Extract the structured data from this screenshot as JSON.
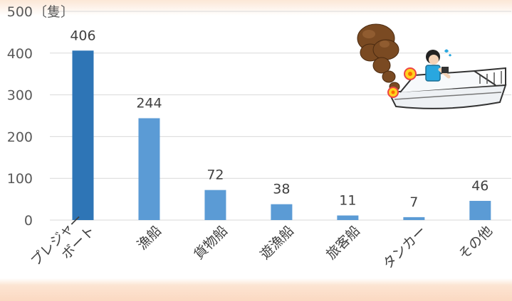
{
  "chart_data": {
    "type": "bar",
    "categories": [
      "プレジャーボート",
      "漁船",
      "貨物船",
      "遊漁船",
      "旅客船",
      "タンカー",
      "その他"
    ],
    "category_display": [
      [
        "プレジャー",
        "ボート"
      ],
      [
        "漁船"
      ],
      [
        "貨物船"
      ],
      [
        "遊漁船"
      ],
      [
        "旅客船"
      ],
      [
        "タンカー"
      ],
      [
        "その他"
      ]
    ],
    "values": [
      406,
      244,
      72,
      38,
      11,
      7,
      46
    ],
    "y_unit": "〔隻〕",
    "y_ticks": [
      0,
      100,
      200,
      300,
      400,
      500
    ],
    "ylim": [
      0,
      500
    ],
    "grid": true,
    "colors": {
      "highlight": "#2e75b6",
      "bar": "#5b9bd5",
      "grid": "#d9d9d9"
    }
  },
  "decoration": {
    "icon": "boat-fire-illustration"
  }
}
